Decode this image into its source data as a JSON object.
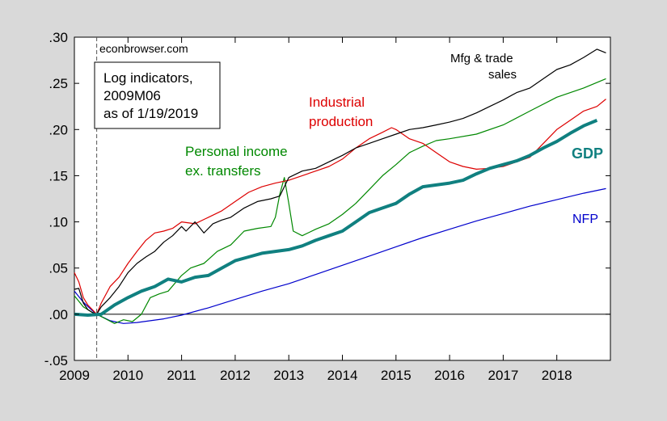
{
  "chart_data": {
    "type": "line",
    "x_range": [
      "2009-01",
      "2018-12"
    ],
    "ylim": [
      -0.05,
      0.3
    ],
    "y_ticks": [
      -0.05,
      0.0,
      0.05,
      0.1,
      0.15,
      0.2,
      0.25,
      0.3
    ],
    "y_tick_labels": [
      "-.05",
      ".00",
      ".05",
      ".10",
      ".15",
      ".20",
      ".25",
      ".30"
    ],
    "x_tick_labels": [
      "2009",
      "2010",
      "2011",
      "2012",
      "2013",
      "2014",
      "2015",
      "2016",
      "2017",
      "2018"
    ],
    "vertical_marker": "2009-06",
    "zero_line": true,
    "grid": false,
    "annotations": {
      "source": "econbrowser.com",
      "info_box": [
        "Log indicators,",
        "2009M06",
        "as of 1/19/2019"
      ]
    },
    "series": [
      {
        "label_lines": [
          "Mfg & trade",
          "sales"
        ],
        "color": "#000000",
        "points": [
          [
            "2009-01",
            0.027
          ],
          [
            "2009-02",
            0.028
          ],
          [
            "2009-03",
            0.012
          ],
          [
            "2009-04",
            0.005
          ],
          [
            "2009-05",
            0.002
          ],
          [
            "2009-06",
            0.0
          ],
          [
            "2009-07",
            0.008
          ],
          [
            "2009-09",
            0.018
          ],
          [
            "2009-11",
            0.03
          ],
          [
            "2010-01",
            0.045
          ],
          [
            "2010-03",
            0.055
          ],
          [
            "2010-05",
            0.062
          ],
          [
            "2010-07",
            0.068
          ],
          [
            "2010-09",
            0.078
          ],
          [
            "2010-11",
            0.085
          ],
          [
            "2011-01",
            0.095
          ],
          [
            "2011-02",
            0.09
          ],
          [
            "2011-04",
            0.1
          ],
          [
            "2011-06",
            0.088
          ],
          [
            "2011-08",
            0.098
          ],
          [
            "2011-10",
            0.102
          ],
          [
            "2011-12",
            0.105
          ],
          [
            "2012-03",
            0.115
          ],
          [
            "2012-06",
            0.122
          ],
          [
            "2012-09",
            0.125
          ],
          [
            "2012-11",
            0.128
          ],
          [
            "2013-01",
            0.148
          ],
          [
            "2013-04",
            0.155
          ],
          [
            "2013-07",
            0.158
          ],
          [
            "2013-10",
            0.165
          ],
          [
            "2014-01",
            0.172
          ],
          [
            "2014-04",
            0.18
          ],
          [
            "2014-07",
            0.185
          ],
          [
            "2014-10",
            0.19
          ],
          [
            "2015-01",
            0.195
          ],
          [
            "2015-04",
            0.2
          ],
          [
            "2015-07",
            0.202
          ],
          [
            "2015-10",
            0.205
          ],
          [
            "2016-01",
            0.208
          ],
          [
            "2016-04",
            0.212
          ],
          [
            "2016-07",
            0.218
          ],
          [
            "2016-10",
            0.225
          ],
          [
            "2017-01",
            0.232
          ],
          [
            "2017-04",
            0.24
          ],
          [
            "2017-07",
            0.245
          ],
          [
            "2017-10",
            0.255
          ],
          [
            "2018-01",
            0.265
          ],
          [
            "2018-04",
            0.27
          ],
          [
            "2018-07",
            0.278
          ],
          [
            "2018-10",
            0.287
          ],
          [
            "2018-12",
            0.283
          ]
        ]
      },
      {
        "label_lines": [
          "Industrial",
          "production"
        ],
        "color": "#dd0000",
        "points": [
          [
            "2009-01",
            0.045
          ],
          [
            "2009-02",
            0.035
          ],
          [
            "2009-03",
            0.018
          ],
          [
            "2009-04",
            0.01
          ],
          [
            "2009-05",
            0.005
          ],
          [
            "2009-06",
            0.0
          ],
          [
            "2009-07",
            0.012
          ],
          [
            "2009-09",
            0.03
          ],
          [
            "2009-11",
            0.04
          ],
          [
            "2010-01",
            0.055
          ],
          [
            "2010-03",
            0.068
          ],
          [
            "2010-05",
            0.08
          ],
          [
            "2010-07",
            0.088
          ],
          [
            "2010-09",
            0.09
          ],
          [
            "2010-11",
            0.093
          ],
          [
            "2011-01",
            0.1
          ],
          [
            "2011-04",
            0.098
          ],
          [
            "2011-07",
            0.105
          ],
          [
            "2011-10",
            0.112
          ],
          [
            "2012-01",
            0.122
          ],
          [
            "2012-04",
            0.132
          ],
          [
            "2012-07",
            0.138
          ],
          [
            "2012-10",
            0.142
          ],
          [
            "2013-01",
            0.145
          ],
          [
            "2013-04",
            0.15
          ],
          [
            "2013-07",
            0.155
          ],
          [
            "2013-10",
            0.16
          ],
          [
            "2014-01",
            0.168
          ],
          [
            "2014-04",
            0.18
          ],
          [
            "2014-07",
            0.19
          ],
          [
            "2014-10",
            0.197
          ],
          [
            "2014-12",
            0.202
          ],
          [
            "2015-01",
            0.2
          ],
          [
            "2015-04",
            0.19
          ],
          [
            "2015-07",
            0.185
          ],
          [
            "2015-10",
            0.175
          ],
          [
            "2016-01",
            0.165
          ],
          [
            "2016-04",
            0.16
          ],
          [
            "2016-07",
            0.157
          ],
          [
            "2016-10",
            0.158
          ],
          [
            "2017-01",
            0.16
          ],
          [
            "2017-04",
            0.165
          ],
          [
            "2017-07",
            0.17
          ],
          [
            "2017-10",
            0.185
          ],
          [
            "2018-01",
            0.2
          ],
          [
            "2018-04",
            0.21
          ],
          [
            "2018-07",
            0.22
          ],
          [
            "2018-10",
            0.225
          ],
          [
            "2018-12",
            0.233
          ]
        ]
      },
      {
        "label_lines": [
          "Personal income",
          "ex. transfers"
        ],
        "color": "#008800",
        "points": [
          [
            "2009-01",
            0.02
          ],
          [
            "2009-03",
            0.008
          ],
          [
            "2009-05",
            0.002
          ],
          [
            "2009-06",
            0.0
          ],
          [
            "2009-08",
            -0.005
          ],
          [
            "2009-10",
            -0.01
          ],
          [
            "2009-12",
            -0.006
          ],
          [
            "2010-02",
            -0.008
          ],
          [
            "2010-04",
            0.0
          ],
          [
            "2010-06",
            0.018
          ],
          [
            "2010-08",
            0.022
          ],
          [
            "2010-10",
            0.025
          ],
          [
            "2011-01",
            0.042
          ],
          [
            "2011-03",
            0.05
          ],
          [
            "2011-06",
            0.055
          ],
          [
            "2011-09",
            0.068
          ],
          [
            "2011-12",
            0.075
          ],
          [
            "2012-03",
            0.09
          ],
          [
            "2012-06",
            0.093
          ],
          [
            "2012-09",
            0.095
          ],
          [
            "2012-10",
            0.105
          ],
          [
            "2012-11",
            0.13
          ],
          [
            "2012-12",
            0.148
          ],
          [
            "2013-01",
            0.12
          ],
          [
            "2013-02",
            0.09
          ],
          [
            "2013-04",
            0.085
          ],
          [
            "2013-07",
            0.092
          ],
          [
            "2013-10",
            0.098
          ],
          [
            "2014-01",
            0.108
          ],
          [
            "2014-04",
            0.12
          ],
          [
            "2014-07",
            0.135
          ],
          [
            "2014-10",
            0.15
          ],
          [
            "2015-01",
            0.162
          ],
          [
            "2015-04",
            0.175
          ],
          [
            "2015-07",
            0.182
          ],
          [
            "2015-10",
            0.188
          ],
          [
            "2016-01",
            0.19
          ],
          [
            "2016-07",
            0.195
          ],
          [
            "2017-01",
            0.205
          ],
          [
            "2017-07",
            0.22
          ],
          [
            "2018-01",
            0.235
          ],
          [
            "2018-07",
            0.245
          ],
          [
            "2018-12",
            0.255
          ]
        ]
      },
      {
        "label_lines": [
          "GDP"
        ],
        "color": "#108080",
        "bold": true,
        "points": [
          [
            "2009-01",
            0.0
          ],
          [
            "2009-04",
            -0.001
          ],
          [
            "2009-07",
            0.0
          ],
          [
            "2009-10",
            0.01
          ],
          [
            "2010-01",
            0.018
          ],
          [
            "2010-04",
            0.025
          ],
          [
            "2010-07",
            0.03
          ],
          [
            "2010-10",
            0.038
          ],
          [
            "2011-01",
            0.035
          ],
          [
            "2011-04",
            0.04
          ],
          [
            "2011-07",
            0.042
          ],
          [
            "2011-10",
            0.05
          ],
          [
            "2012-01",
            0.058
          ],
          [
            "2012-04",
            0.062
          ],
          [
            "2012-07",
            0.066
          ],
          [
            "2012-10",
            0.068
          ],
          [
            "2013-01",
            0.07
          ],
          [
            "2013-04",
            0.074
          ],
          [
            "2013-07",
            0.08
          ],
          [
            "2013-10",
            0.085
          ],
          [
            "2014-01",
            0.09
          ],
          [
            "2014-04",
            0.1
          ],
          [
            "2014-07",
            0.11
          ],
          [
            "2014-10",
            0.115
          ],
          [
            "2015-01",
            0.12
          ],
          [
            "2015-04",
            0.13
          ],
          [
            "2015-07",
            0.138
          ],
          [
            "2015-10",
            0.14
          ],
          [
            "2016-01",
            0.142
          ],
          [
            "2016-04",
            0.145
          ],
          [
            "2016-07",
            0.152
          ],
          [
            "2016-10",
            0.158
          ],
          [
            "2017-01",
            0.162
          ],
          [
            "2017-04",
            0.166
          ],
          [
            "2017-07",
            0.172
          ],
          [
            "2017-10",
            0.18
          ],
          [
            "2018-01",
            0.187
          ],
          [
            "2018-04",
            0.196
          ],
          [
            "2018-07",
            0.204
          ],
          [
            "2018-10",
            0.21
          ]
        ]
      },
      {
        "label_lines": [
          "NFP"
        ],
        "color": "#0000cc",
        "points": [
          [
            "2009-01",
            0.025
          ],
          [
            "2009-03",
            0.013
          ],
          [
            "2009-05",
            0.004
          ],
          [
            "2009-06",
            0.0
          ],
          [
            "2009-09",
            -0.007
          ],
          [
            "2009-12",
            -0.01
          ],
          [
            "2010-03",
            -0.009
          ],
          [
            "2010-06",
            -0.007
          ],
          [
            "2010-09",
            -0.005
          ],
          [
            "2011-01",
            -0.001
          ],
          [
            "2011-07",
            0.007
          ],
          [
            "2012-01",
            0.016
          ],
          [
            "2012-07",
            0.025
          ],
          [
            "2013-01",
            0.033
          ],
          [
            "2013-07",
            0.043
          ],
          [
            "2014-01",
            0.053
          ],
          [
            "2014-07",
            0.063
          ],
          [
            "2015-01",
            0.073
          ],
          [
            "2015-07",
            0.083
          ],
          [
            "2016-01",
            0.092
          ],
          [
            "2016-07",
            0.101
          ],
          [
            "2017-01",
            0.109
          ],
          [
            "2017-07",
            0.117
          ],
          [
            "2018-01",
            0.124
          ],
          [
            "2018-07",
            0.131
          ],
          [
            "2018-12",
            0.136
          ]
        ]
      }
    ]
  }
}
